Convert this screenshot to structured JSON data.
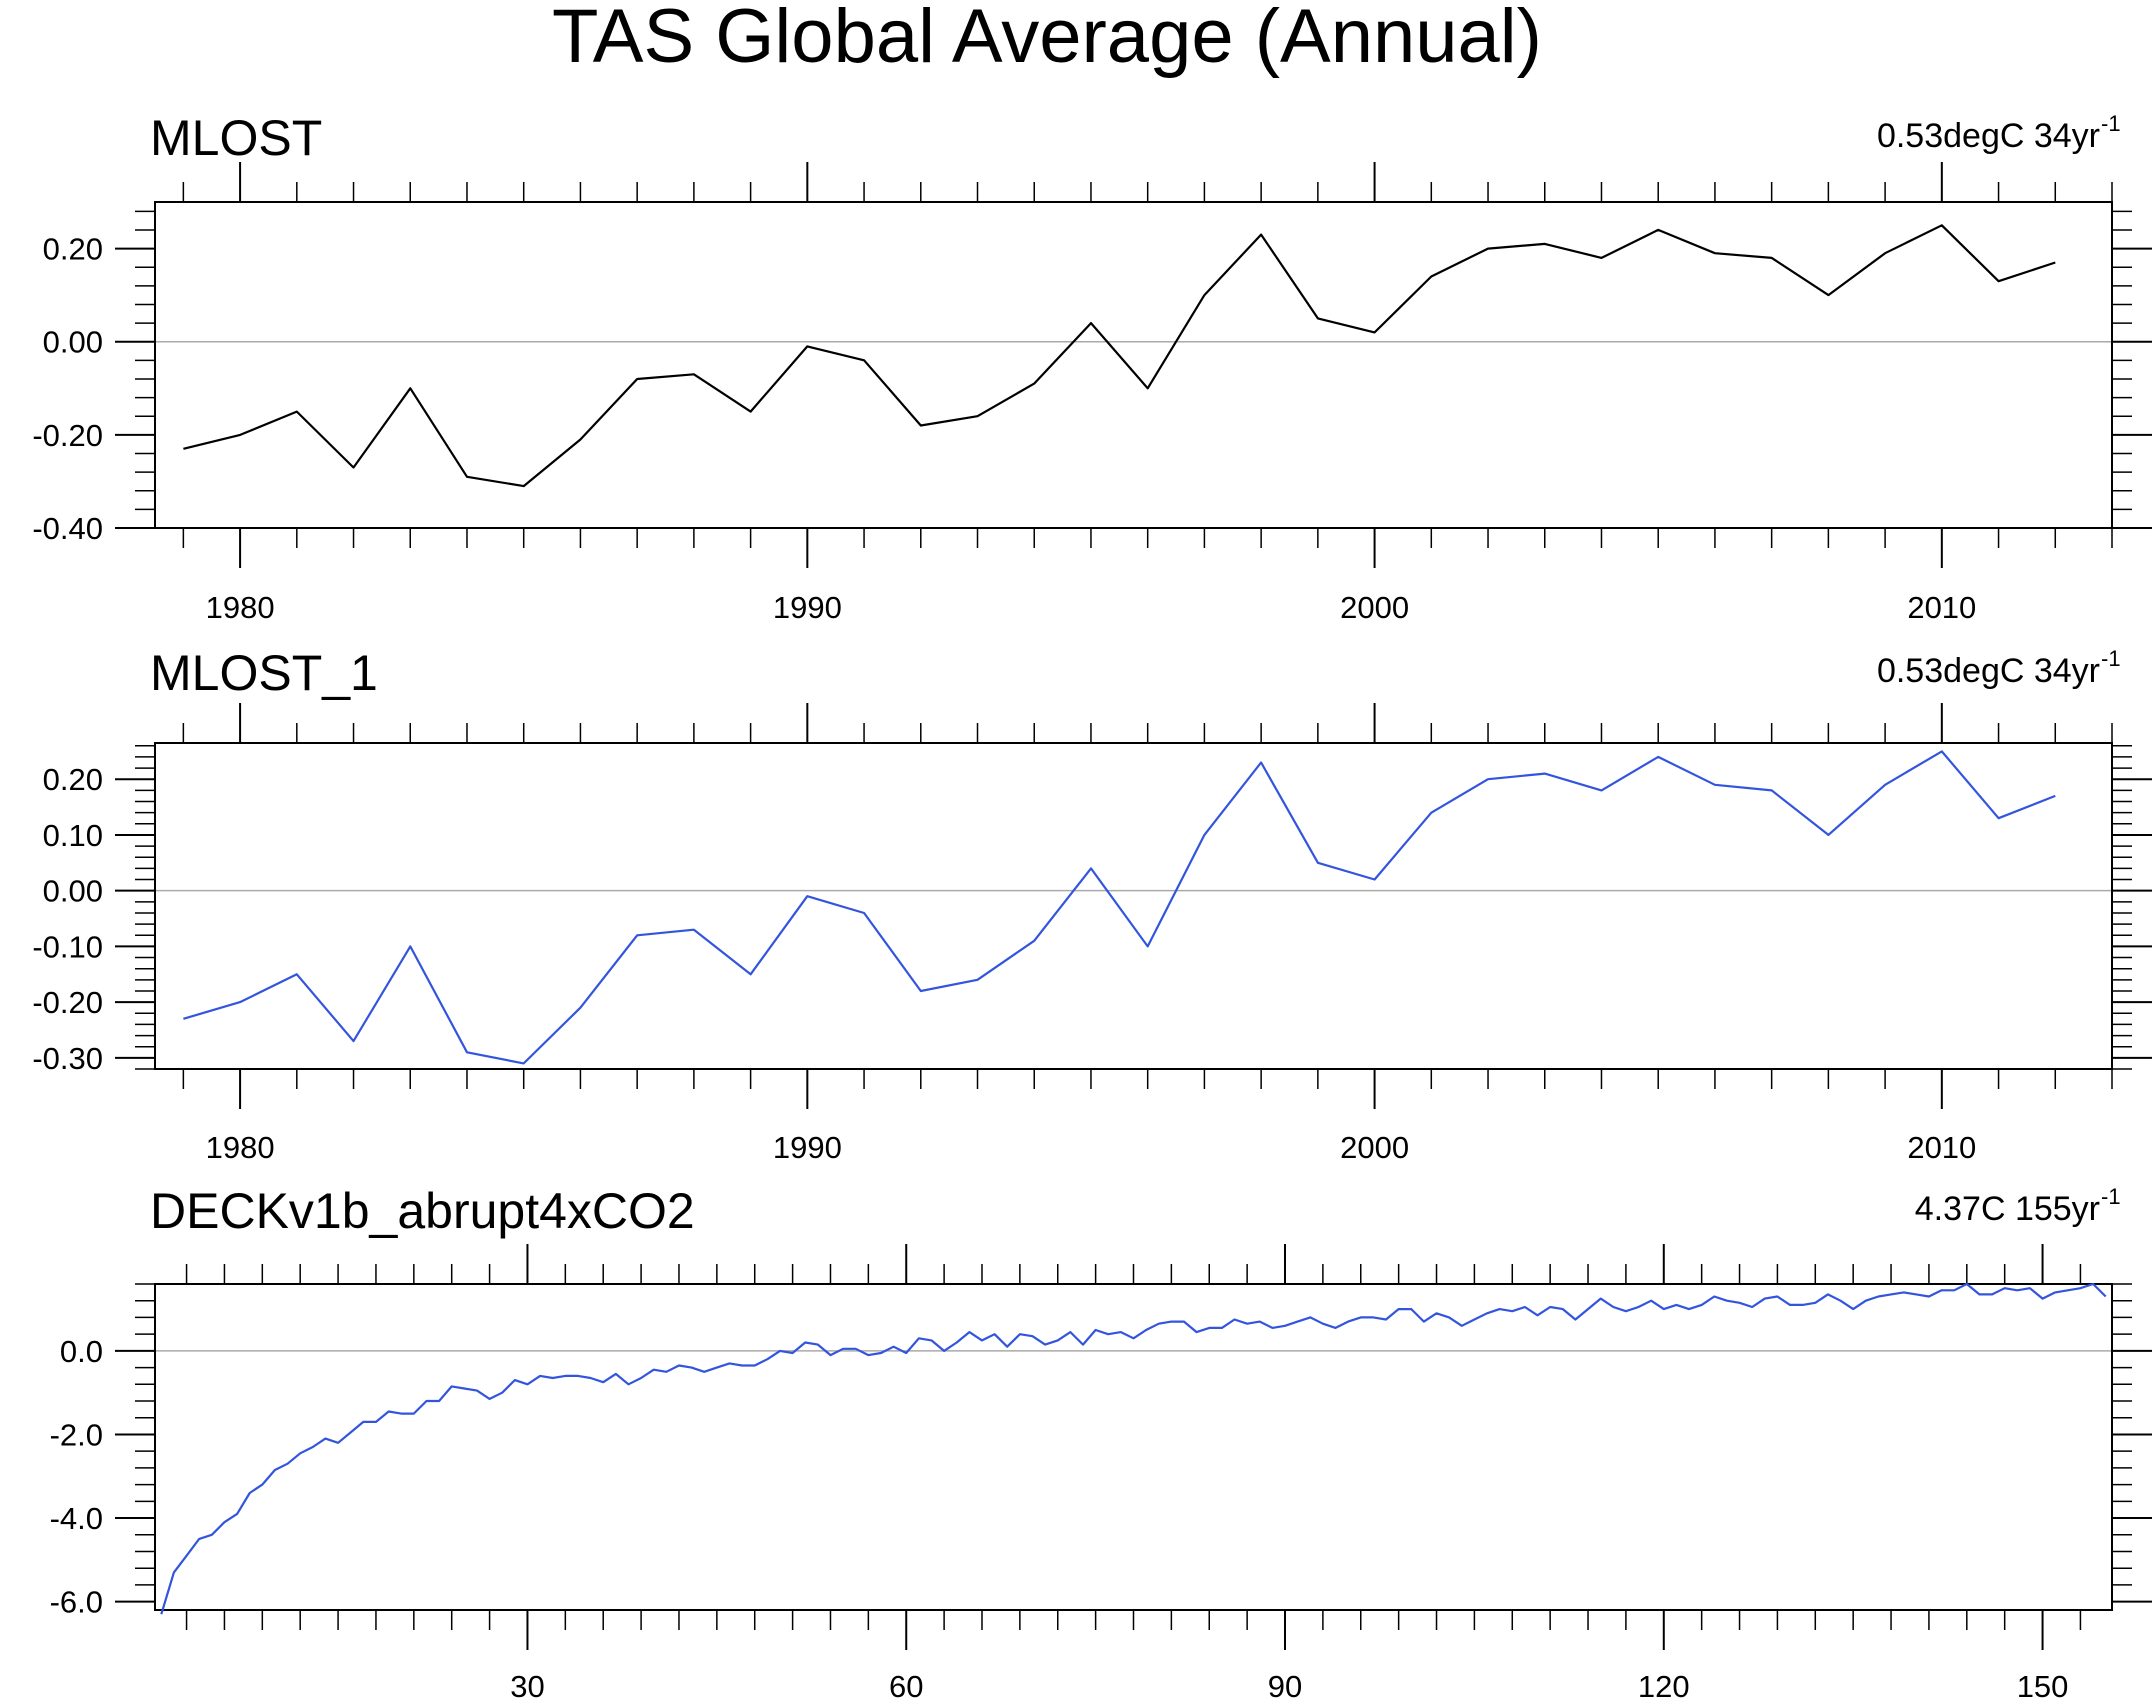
{
  "title": "TAS Global Average (Annual)",
  "colors": {
    "axis": "#000000",
    "zero_line": "#aaaaaa",
    "series_black": "#000000",
    "series_blue": "#3355dd"
  },
  "chart_data": [
    {
      "type": "line",
      "title": "MLOST",
      "trend_label": "0.53degC 34yr",
      "trend_exponent": "-1",
      "xlabel": "",
      "ylabel": "",
      "xlim": [
        1978.5,
        2013
      ],
      "ylim": [
        -0.4,
        0.3
      ],
      "xticks": [
        1980,
        1990,
        2000,
        2010
      ],
      "yticks": [
        -0.4,
        -0.2,
        0.0,
        0.2
      ],
      "ytick_labels": [
        "-0.40",
        "-0.20",
        "0.00",
        "0.20"
      ],
      "series": [
        {
          "name": "MLOST",
          "color": "#000000",
          "x": [
            1979,
            1980,
            1981,
            1982,
            1983,
            1984,
            1985,
            1986,
            1987,
            1988,
            1989,
            1990,
            1991,
            1992,
            1993,
            1994,
            1995,
            1996,
            1997,
            1998,
            1999,
            2000,
            2001,
            2002,
            2003,
            2004,
            2005,
            2006,
            2007,
            2008,
            2009,
            2010,
            2011,
            2012
          ],
          "y": [
            -0.23,
            -0.2,
            -0.15,
            -0.27,
            -0.1,
            -0.29,
            -0.31,
            -0.21,
            -0.08,
            -0.07,
            -0.15,
            -0.01,
            -0.04,
            -0.18,
            -0.16,
            -0.09,
            0.04,
            -0.1,
            0.1,
            0.23,
            0.05,
            0.02,
            0.14,
            0.2,
            0.21,
            0.18,
            0.24,
            0.19,
            0.18,
            0.1,
            0.19,
            0.25,
            0.13,
            0.17
          ]
        }
      ]
    },
    {
      "type": "line",
      "title": "MLOST_1",
      "trend_label": "0.53degC 34yr",
      "trend_exponent": "-1",
      "xlabel": "",
      "ylabel": "",
      "xlim": [
        1978.5,
        2013
      ],
      "ylim": [
        -0.32,
        0.265
      ],
      "xticks": [
        1980,
        1990,
        2000,
        2010
      ],
      "yticks": [
        -0.3,
        -0.2,
        -0.1,
        0.0,
        0.1,
        0.2
      ],
      "ytick_labels": [
        "-0.30",
        "-0.20",
        "-0.10",
        "0.00",
        "0.10",
        "0.20"
      ],
      "series": [
        {
          "name": "MLOST_1",
          "color": "#3355dd",
          "x": [
            1979,
            1980,
            1981,
            1982,
            1983,
            1984,
            1985,
            1986,
            1987,
            1988,
            1989,
            1990,
            1991,
            1992,
            1993,
            1994,
            1995,
            1996,
            1997,
            1998,
            1999,
            2000,
            2001,
            2002,
            2003,
            2004,
            2005,
            2006,
            2007,
            2008,
            2009,
            2010,
            2011,
            2012
          ],
          "y": [
            -0.23,
            -0.2,
            -0.15,
            -0.27,
            -0.1,
            -0.29,
            -0.31,
            -0.21,
            -0.08,
            -0.07,
            -0.15,
            -0.01,
            -0.04,
            -0.18,
            -0.16,
            -0.09,
            0.04,
            -0.1,
            0.1,
            0.23,
            0.05,
            0.02,
            0.14,
            0.2,
            0.21,
            0.18,
            0.24,
            0.19,
            0.18,
            0.1,
            0.19,
            0.25,
            0.13,
            0.17
          ]
        }
      ]
    },
    {
      "type": "line",
      "title": "DECKv1b_abrupt4xCO2",
      "trend_label": "4.37C 155yr",
      "trend_exponent": "-1",
      "xlabel": "",
      "ylabel": "",
      "xlim": [
        0.5,
        155.5
      ],
      "ylim": [
        -6.2,
        1.6
      ],
      "xticks": [
        30,
        60,
        90,
        120,
        150
      ],
      "yticks": [
        -6.0,
        -4.0,
        -2.0,
        0.0
      ],
      "ytick_labels": [
        "-6.0",
        "-4.0",
        "-2.0",
        "0.0"
      ],
      "series": [
        {
          "name": "DECKv1b_abrupt4xCO2",
          "color": "#3355dd",
          "x": [
            1,
            2,
            3,
            4,
            5,
            6,
            7,
            8,
            9,
            10,
            11,
            12,
            13,
            14,
            15,
            16,
            17,
            18,
            19,
            20,
            21,
            22,
            23,
            24,
            25,
            26,
            27,
            28,
            29,
            30,
            31,
            32,
            33,
            34,
            35,
            36,
            37,
            38,
            39,
            40,
            41,
            42,
            43,
            44,
            45,
            46,
            47,
            48,
            49,
            50,
            51,
            52,
            53,
            54,
            55,
            56,
            57,
            58,
            59,
            60,
            61,
            62,
            63,
            64,
            65,
            66,
            67,
            68,
            69,
            70,
            71,
            72,
            73,
            74,
            75,
            76,
            77,
            78,
            79,
            80,
            81,
            82,
            83,
            84,
            85,
            86,
            87,
            88,
            89,
            90,
            91,
            92,
            93,
            94,
            95,
            96,
            97,
            98,
            99,
            100,
            101,
            102,
            103,
            104,
            105,
            106,
            107,
            108,
            109,
            110,
            111,
            112,
            113,
            114,
            115,
            116,
            117,
            118,
            119,
            120,
            121,
            122,
            123,
            124,
            125,
            126,
            127,
            128,
            129,
            130,
            131,
            132,
            133,
            134,
            135,
            136,
            137,
            138,
            139,
            140,
            141,
            142,
            143,
            144,
            145,
            146,
            147,
            148,
            149,
            150,
            151,
            152,
            153,
            154,
            155
          ],
          "y": [
            -6.3,
            -5.3,
            -4.9,
            -4.5,
            -4.4,
            -4.1,
            -3.9,
            -3.4,
            -3.2,
            -2.85,
            -2.7,
            -2.45,
            -2.3,
            -2.1,
            -2.2,
            -1.95,
            -1.7,
            -1.7,
            -1.45,
            -1.5,
            -1.5,
            -1.2,
            -1.2,
            -0.85,
            -0.9,
            -0.95,
            -1.15,
            -1.0,
            -0.7,
            -0.8,
            -0.6,
            -0.65,
            -0.6,
            -0.6,
            -0.65,
            -0.75,
            -0.55,
            -0.8,
            -0.65,
            -0.45,
            -0.5,
            -0.35,
            -0.4,
            -0.5,
            -0.4,
            -0.3,
            -0.35,
            -0.35,
            -0.2,
            0.0,
            -0.05,
            0.2,
            0.15,
            -0.1,
            0.05,
            0.05,
            -0.1,
            -0.05,
            0.1,
            -0.05,
            0.3,
            0.25,
            0.0,
            0.2,
            0.45,
            0.25,
            0.4,
            0.1,
            0.4,
            0.35,
            0.15,
            0.25,
            0.45,
            0.15,
            0.5,
            0.4,
            0.45,
            0.3,
            0.5,
            0.65,
            0.7,
            0.7,
            0.45,
            0.55,
            0.55,
            0.75,
            0.65,
            0.7,
            0.55,
            0.6,
            0.7,
            0.8,
            0.65,
            0.55,
            0.7,
            0.8,
            0.8,
            0.75,
            1.0,
            1.0,
            0.7,
            0.9,
            0.8,
            0.6,
            0.75,
            0.9,
            1.0,
            0.95,
            1.05,
            0.85,
            1.05,
            1.0,
            0.75,
            1.0,
            1.25,
            1.05,
            0.95,
            1.05,
            1.2,
            1.0,
            1.1,
            1.0,
            1.1,
            1.3,
            1.2,
            1.15,
            1.05,
            1.25,
            1.3,
            1.1,
            1.1,
            1.15,
            1.35,
            1.2,
            1.0,
            1.2,
            1.3,
            1.35,
            1.4,
            1.35,
            1.3,
            1.45,
            1.45,
            1.6,
            1.35,
            1.35,
            1.5,
            1.45,
            1.5,
            1.25,
            1.4,
            1.45,
            1.5,
            1.6,
            1.3
          ]
        }
      ]
    }
  ]
}
